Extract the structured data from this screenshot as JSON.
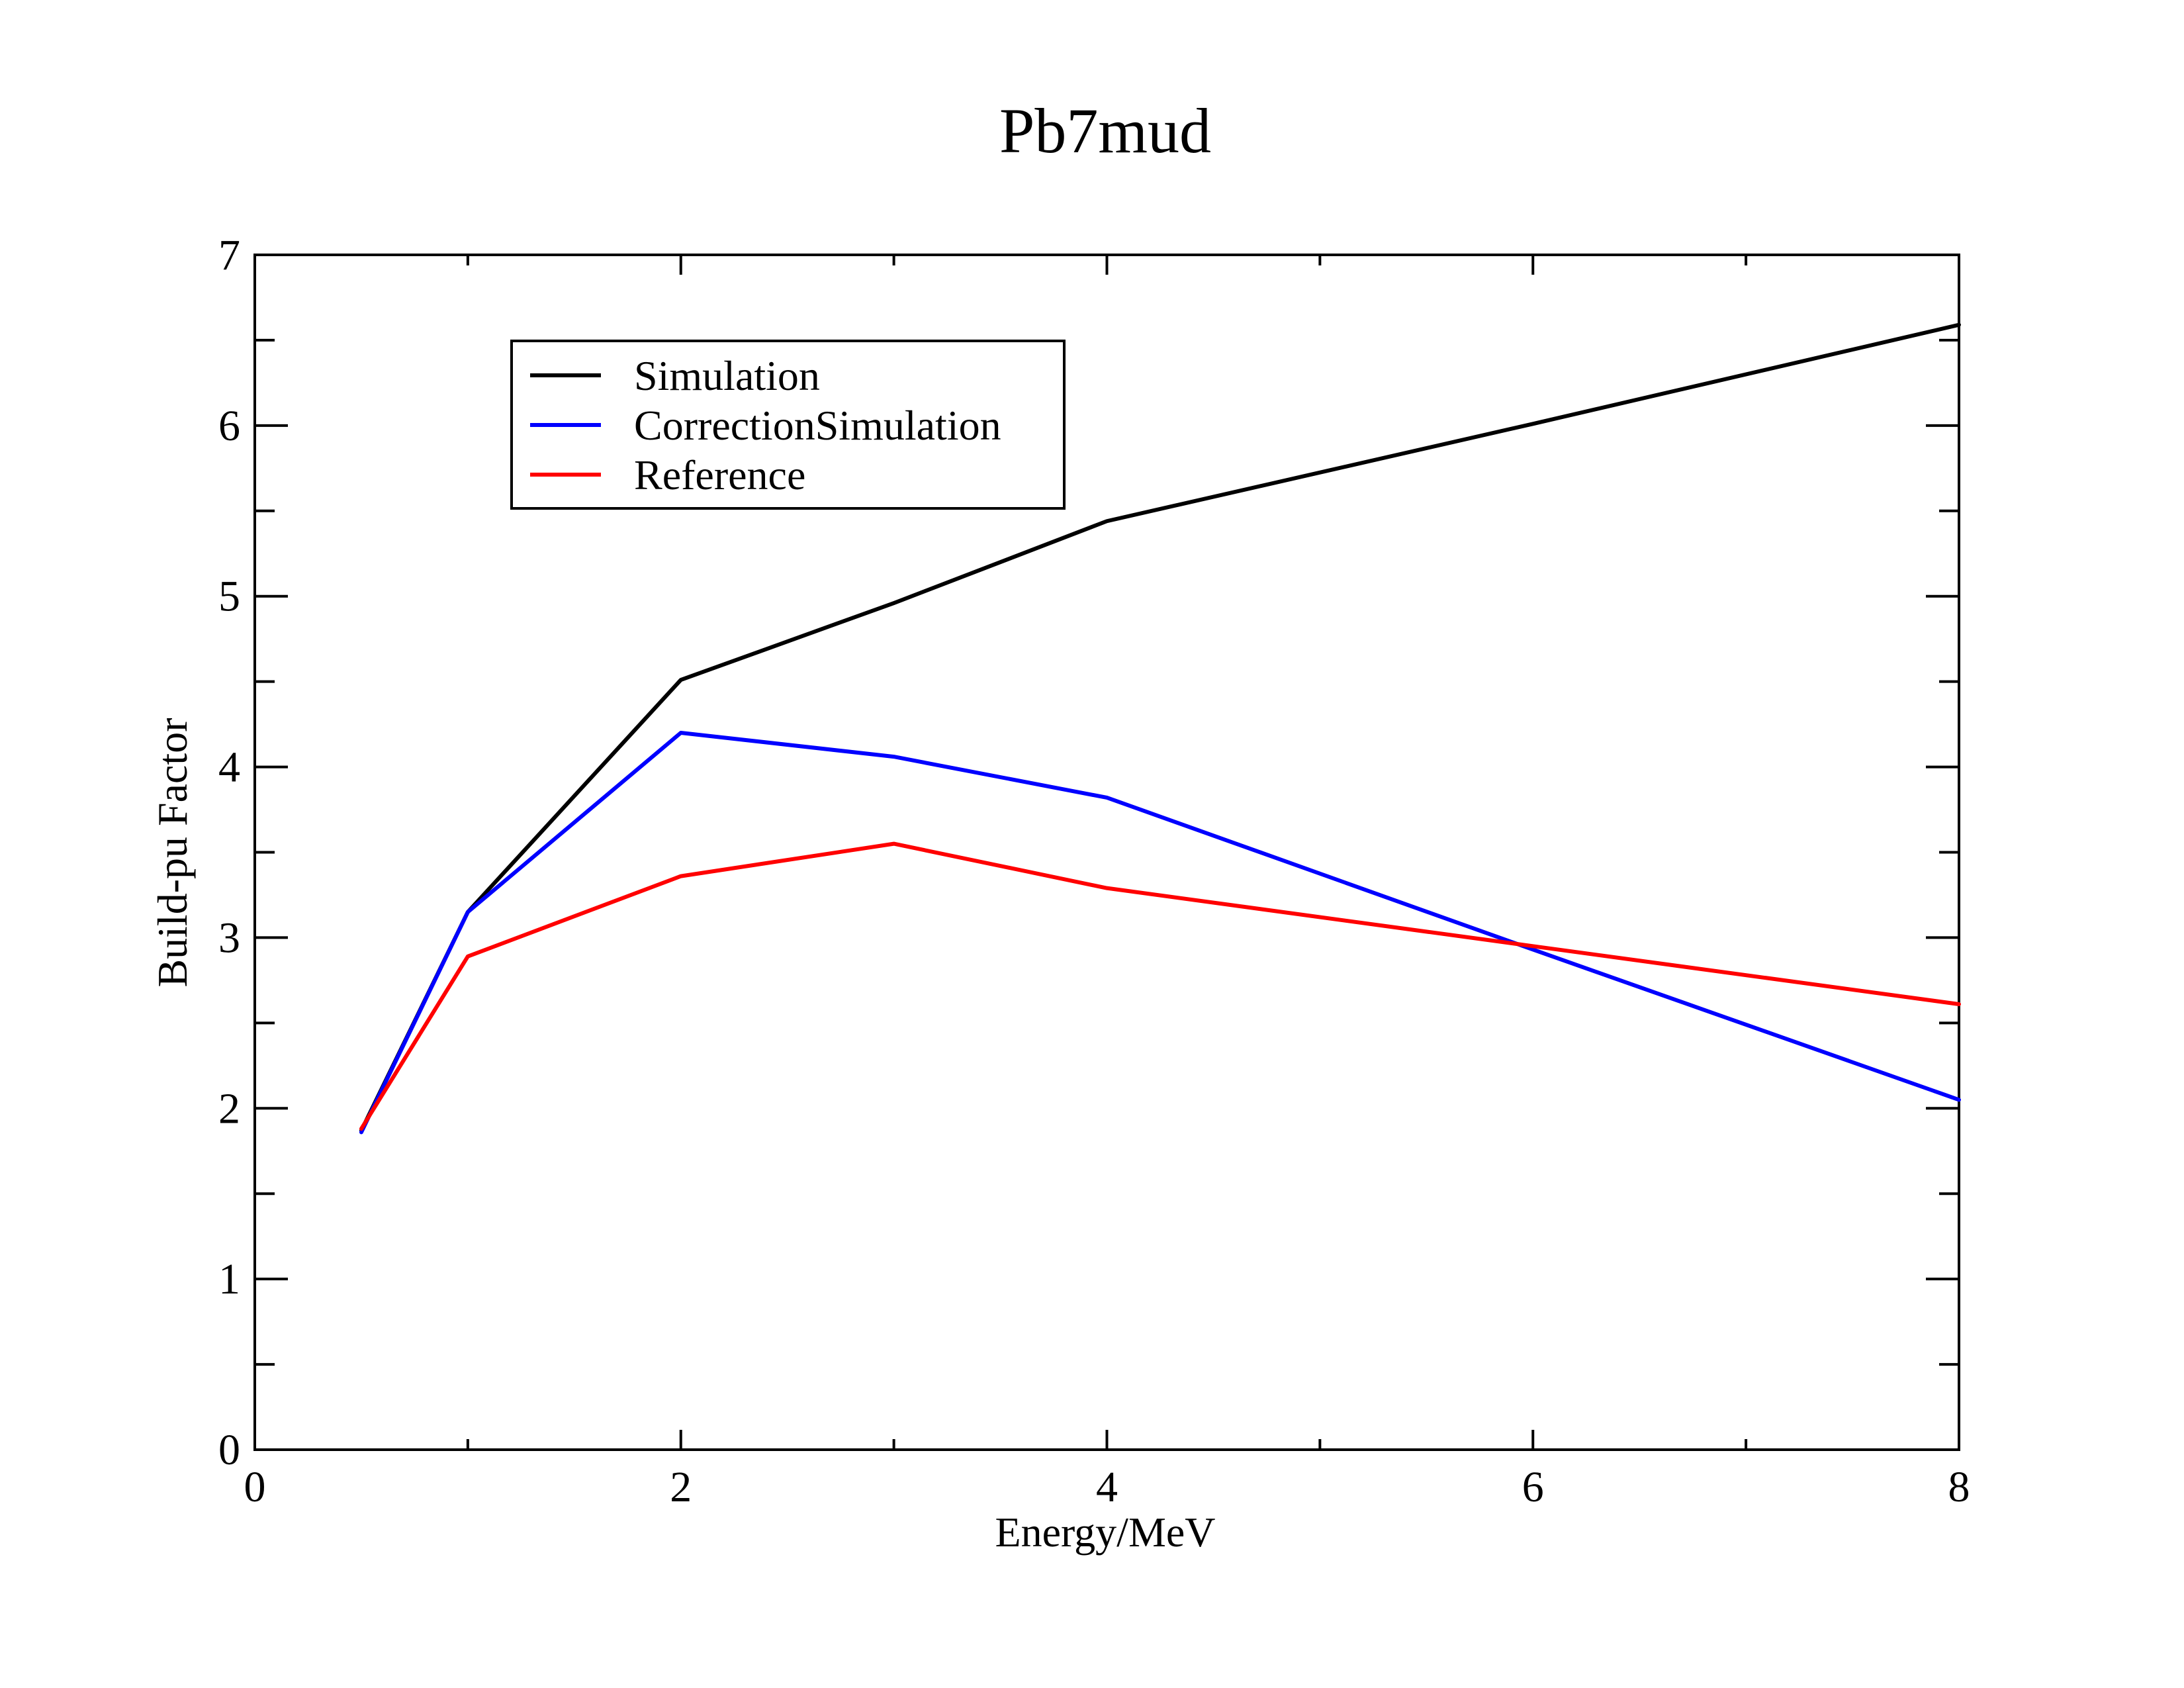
{
  "chart_data": {
    "type": "line",
    "title": "Pb7mud",
    "xlabel": "Energy/MeV",
    "ylabel": "Build-pu Factor",
    "xlim": [
      0,
      8
    ],
    "ylim": [
      0,
      7
    ],
    "x_ticks": [
      "0",
      "2",
      "4",
      "6",
      "8"
    ],
    "y_ticks": [
      "0",
      "1",
      "2",
      "3",
      "4",
      "5",
      "6",
      "7"
    ],
    "grid": false,
    "legend_position": "top-left",
    "series": [
      {
        "name": "Simulation",
        "color": "#000000",
        "x": [
          0.5,
          1,
          2,
          3,
          4,
          6,
          8
        ],
        "y": [
          1.87,
          3.15,
          4.51,
          4.96,
          5.44,
          6.01,
          6.59
        ]
      },
      {
        "name": "CorrectionSimulation",
        "color": "#0000ff",
        "x": [
          0.5,
          1,
          2,
          3,
          4,
          6,
          8
        ],
        "y": [
          1.86,
          3.15,
          4.2,
          4.06,
          3.82,
          2.93,
          2.05
        ]
      },
      {
        "name": "Reference",
        "color": "#ff0000",
        "x": [
          0.5,
          1,
          2,
          3,
          4,
          6,
          8
        ],
        "y": [
          1.88,
          2.89,
          3.36,
          3.55,
          3.29,
          2.95,
          2.61
        ]
      }
    ]
  }
}
